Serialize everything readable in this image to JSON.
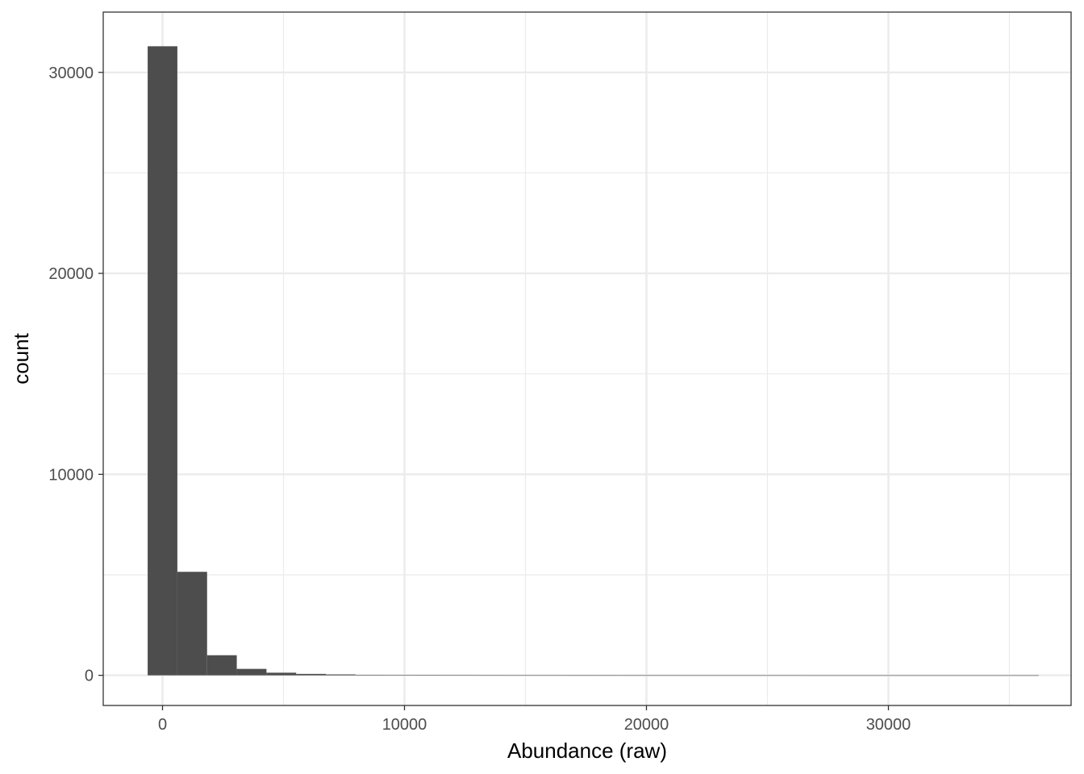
{
  "chart_data": {
    "type": "bar",
    "title": "",
    "xlabel": "Abundance (raw)",
    "ylabel": "count",
    "xlim": [
      -2450,
      37550
    ],
    "ylim": [
      -1500,
      33000
    ],
    "x_ticks": [
      0,
      10000,
      20000,
      30000
    ],
    "x_tick_labels": [
      "0",
      "10000",
      "20000",
      "30000"
    ],
    "y_ticks": [
      0,
      10000,
      20000,
      30000
    ],
    "y_tick_labels": [
      "0",
      "10000",
      "20000",
      "30000"
    ],
    "bin_width": 1227.6,
    "bin_start": -613.8,
    "values": [
      31300,
      5150,
      1000,
      320,
      130,
      70,
      45,
      25,
      15,
      10,
      8,
      6,
      5,
      5,
      4,
      4,
      3,
      3,
      2,
      2,
      2,
      2,
      1,
      1,
      1,
      1,
      1,
      1,
      1,
      1
    ],
    "grid": true,
    "bar_color": "#4d4d4d"
  }
}
